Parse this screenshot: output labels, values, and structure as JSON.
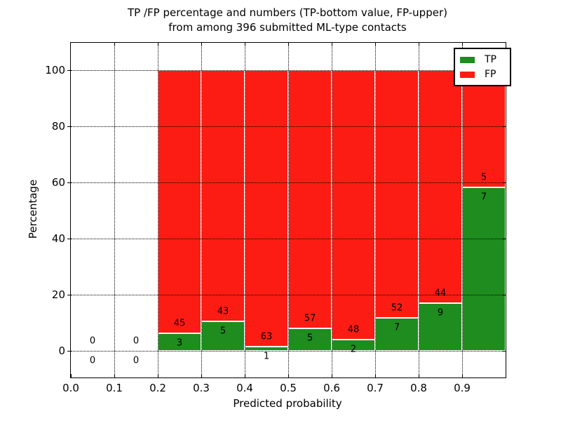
{
  "title": {
    "line1": "TP /FP percentage and numbers (TP-bottom value, FP-upper)",
    "line2": "from among 396 submitted ML-type contacts"
  },
  "x_axis": {
    "label": "Predicted probability",
    "tick_labels": [
      "0.0",
      "0.1",
      "0.2",
      "0.3",
      "0.4",
      "0.5",
      "0.6",
      "0.7",
      "0.8",
      "0.9"
    ]
  },
  "y_axis": {
    "label": "Percentage",
    "tick_labels": [
      "0",
      "20",
      "40",
      "60",
      "80",
      "100"
    ]
  },
  "legend": {
    "items": [
      {
        "label": "TP",
        "color": "#1e8c1e"
      },
      {
        "label": "FP",
        "color": "#fd1c13"
      }
    ]
  },
  "chart_data": {
    "type": "bar",
    "stacked": true,
    "normalized_to_percent": true,
    "title": "TP /FP percentage and numbers (TP-bottom value, FP-upper) from among 396 submitted ML-type contacts",
    "xlabel": "Predicted probability",
    "ylabel": "Percentage",
    "total_contacts": 396,
    "bin_width": 0.1,
    "bins": [
      {
        "x_start": 0.0,
        "x_end": 0.1,
        "tp_count": 0,
        "fp_count": 0
      },
      {
        "x_start": 0.1,
        "x_end": 0.2,
        "tp_count": 0,
        "fp_count": 0
      },
      {
        "x_start": 0.2,
        "x_end": 0.3,
        "tp_count": 3,
        "fp_count": 45
      },
      {
        "x_start": 0.3,
        "x_end": 0.4,
        "tp_count": 5,
        "fp_count": 43
      },
      {
        "x_start": 0.4,
        "x_end": 0.5,
        "tp_count": 1,
        "fp_count": 63
      },
      {
        "x_start": 0.5,
        "x_end": 0.6,
        "tp_count": 5,
        "fp_count": 57
      },
      {
        "x_start": 0.6,
        "x_end": 0.7,
        "tp_count": 2,
        "fp_count": 48
      },
      {
        "x_start": 0.7,
        "x_end": 0.8,
        "tp_count": 7,
        "fp_count": 52
      },
      {
        "x_start": 0.8,
        "x_end": 0.9,
        "tp_count": 9,
        "fp_count": 44
      },
      {
        "x_start": 0.9,
        "x_end": 1.0,
        "tp_count": 7,
        "fp_count": 5
      }
    ],
    "series": [
      {
        "name": "TP",
        "color": "#1e8c1e",
        "position": "bottom"
      },
      {
        "name": "FP",
        "color": "#fd1c13",
        "position": "top"
      }
    ],
    "bar_count_labels": "FP count above green top, TP count below green top",
    "label_offset_pct": 3.5,
    "y_ticks": [
      0,
      20,
      40,
      60,
      80,
      100
    ],
    "x_ticks": [
      0.0,
      0.1,
      0.2,
      0.3,
      0.4,
      0.5,
      0.6,
      0.7,
      0.8,
      0.9
    ],
    "ylim": [
      -9.5,
      109.75
    ],
    "xlim": [
      0,
      1
    ],
    "grid": "dotted",
    "legend_position": "upper right",
    "bar_edge_color": "#ffffff"
  }
}
